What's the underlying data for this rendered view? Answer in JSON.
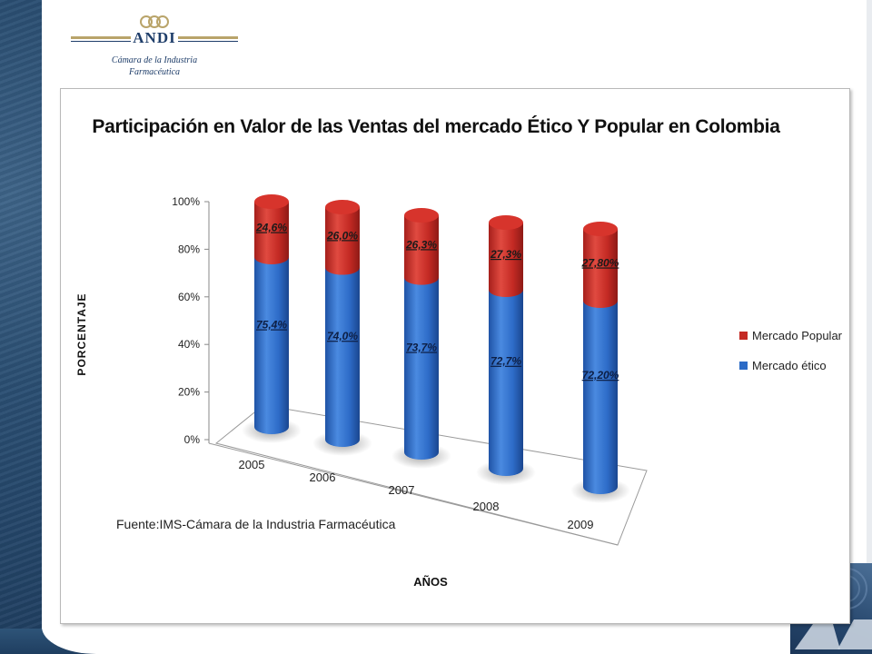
{
  "header": {
    "org": "ANDI",
    "subtitle_line1": "Cámara de la Industria",
    "subtitle_line2": "Farmacéutica"
  },
  "colors": {
    "popular": "#c42a24",
    "etico": "#2c6bc6",
    "accent_navy": "#1f3e6a",
    "accent_gold": "#b9a46a"
  },
  "chart_data": {
    "type": "bar",
    "stacked": true,
    "title": "Participación en Valor de las Ventas del mercado Ético Y Popular en Colombia",
    "xlabel": "AÑOS",
    "ylabel": "PORCENTAJE",
    "ylim": [
      0,
      100
    ],
    "yticks": [
      "0%",
      "20%",
      "40%",
      "60%",
      "80%",
      "100%"
    ],
    "categories": [
      "2005",
      "2006",
      "2007",
      "2008",
      "2009"
    ],
    "series": [
      {
        "name": "Mercado ético",
        "values": [
          75.4,
          74.0,
          73.7,
          72.7,
          72.2
        ],
        "labels": [
          "75,4%",
          "74,0%",
          "73,7%",
          "72,7%",
          "72,20%"
        ]
      },
      {
        "name": "Mercado Popular",
        "values": [
          24.6,
          26.0,
          26.3,
          27.3,
          27.8
        ],
        "labels": [
          "24,6%",
          "26,0%",
          "26,3%",
          "27,3%",
          "27,80%"
        ]
      }
    ],
    "legend_position": "right",
    "source_note": "Fuente:IMS-Cámara de la Industria Farmacéutica"
  }
}
